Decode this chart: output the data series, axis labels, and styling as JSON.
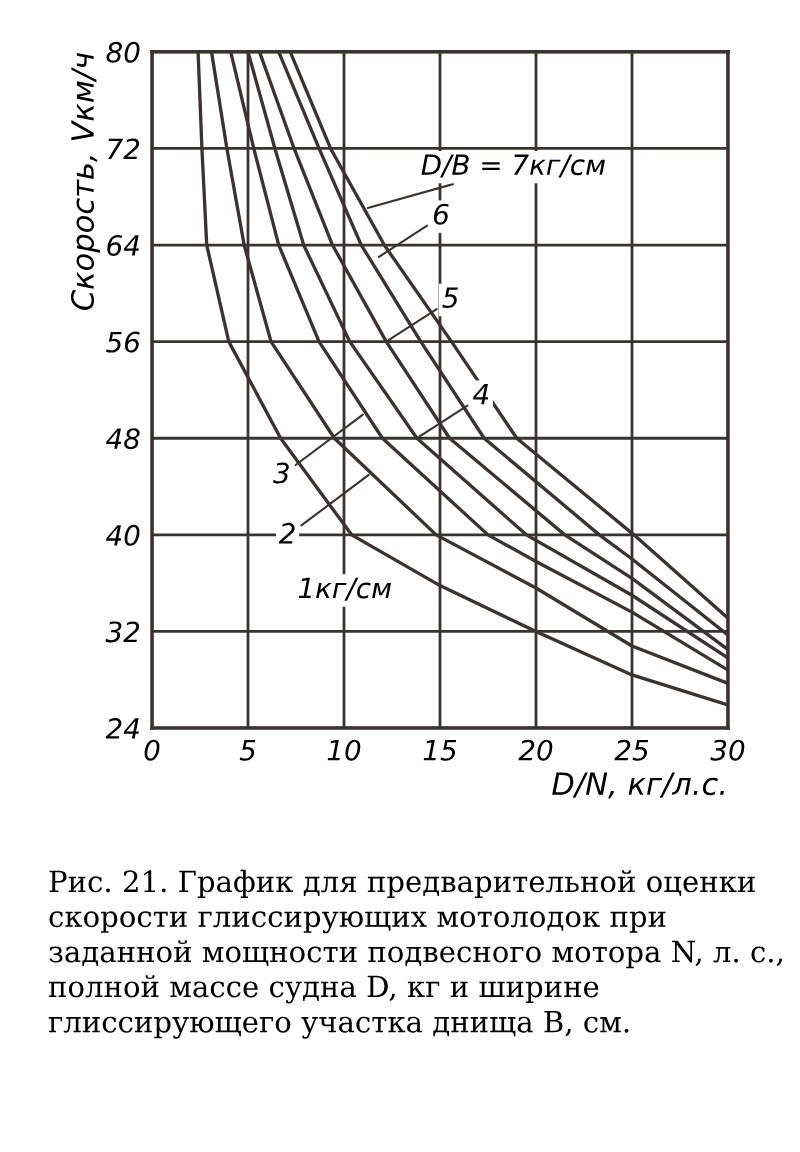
{
  "chart_data": {
    "type": "line",
    "xlabel": "D/N, кг/л.с.",
    "ylabel": "Скорость, Vкм/ч",
    "xlim": [
      0,
      30
    ],
    "ylim": [
      24,
      80
    ],
    "xticks": [
      0,
      5,
      10,
      15,
      20,
      25,
      30
    ],
    "yticks": [
      24,
      32,
      40,
      48,
      56,
      64,
      72,
      80
    ],
    "grid": true,
    "series": [
      {
        "color": "#3a3330",
        "x": [
          2.4,
          2.6,
          2.85,
          4.0,
          6.7,
          10.4,
          15,
          20,
          25,
          30
        ],
        "values": [
          80,
          72,
          64,
          56,
          48,
          40,
          35.8,
          32,
          28.4,
          25.9
        ]
      },
      {
        "color": "#3a3330",
        "x": [
          3.1,
          3.9,
          4.8,
          6.2,
          9.5,
          14.8,
          20,
          25,
          30
        ],
        "values": [
          80,
          72,
          64,
          56,
          48,
          40,
          35.6,
          30.8,
          27.7
        ]
      },
      {
        "color": "#3a3330",
        "x": [
          4.1,
          5.3,
          6.6,
          8.7,
          12.0,
          17.5,
          20,
          25,
          30
        ],
        "values": [
          80,
          72,
          64,
          56,
          48,
          40,
          37.8,
          33.6,
          28.8
        ]
      },
      {
        "color": "#3a3330",
        "x": [
          5.0,
          6.4,
          7.9,
          10.3,
          13.8,
          19.5,
          25,
          30
        ],
        "values": [
          80,
          72,
          64,
          56,
          48,
          40,
          35.0,
          29.8
        ]
      },
      {
        "color": "#3a3330",
        "x": [
          5.6,
          7.4,
          9.4,
          12.2,
          15.5,
          21.5,
          25,
          30
        ],
        "values": [
          80,
          72,
          64,
          56,
          48,
          40,
          36.4,
          30.5
        ]
      },
      {
        "color": "#3a3330",
        "x": [
          6.6,
          8.7,
          10.9,
          14.0,
          17.3,
          23.3,
          25,
          30
        ],
        "values": [
          80,
          72,
          64,
          56,
          48,
          40,
          38.0,
          31.7
        ]
      },
      {
        "color": "#3a3330",
        "x": [
          7.2,
          9.3,
          12.1,
          15.6,
          19.0,
          25.1,
          30
        ],
        "values": [
          80,
          72,
          64,
          56,
          48,
          40,
          33.1
        ]
      }
    ],
    "annotations": [
      {
        "text": "D/B = 7кг/см",
        "x": 11.1,
        "y": 67
      },
      {
        "text": "6",
        "x": 11.7,
        "y": 62.9
      },
      {
        "text": "5",
        "x": 12.2,
        "y": 56
      },
      {
        "text": "4",
        "x": 13.8,
        "y": 48
      },
      {
        "text": "3",
        "x": 11.1,
        "y": 50.1
      },
      {
        "text": "2",
        "x": 11.4,
        "y": 45.1
      },
      {
        "text": "1кг/см",
        "x": 10.4,
        "y": 40
      },
      "Рис. 21. График для предварительной оценки скорости глиссирующих мотолодок при заданной мощности подвесного мотора N, л. с., полной массе судна D, кг и ширине глиссирующего участка днища B, см."
    ]
  }
}
